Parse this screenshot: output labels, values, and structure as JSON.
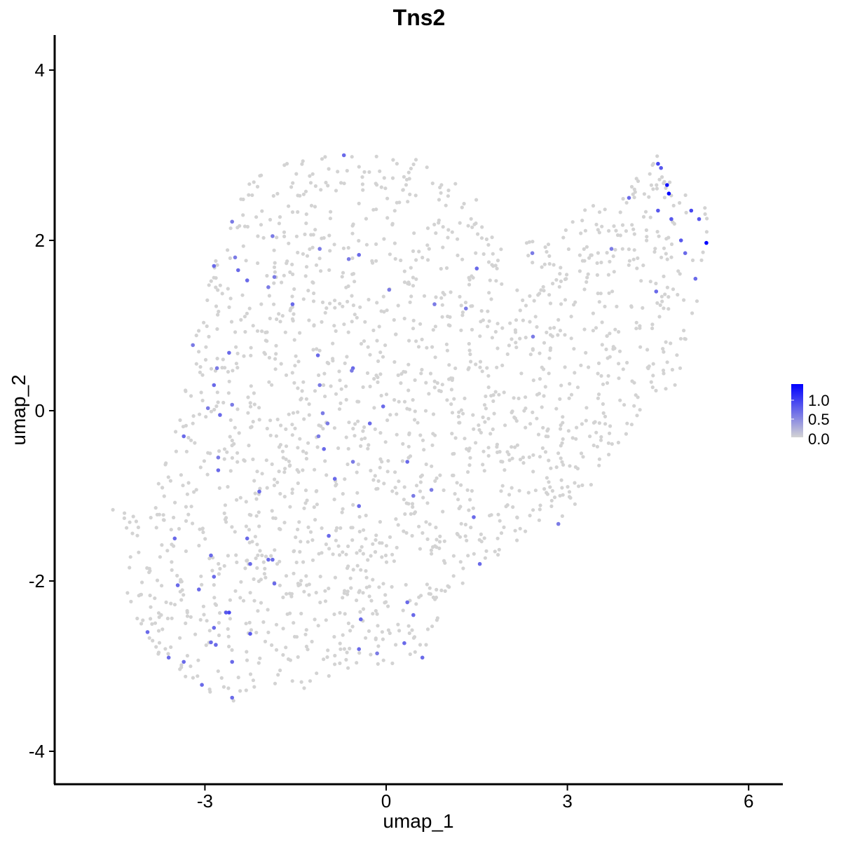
{
  "chart_data": {
    "type": "scatter",
    "title": "Tns2",
    "xlabel": "umap_1",
    "ylabel": "umap_2",
    "xlim": [
      -5.35,
      6.55
    ],
    "ylim": [
      -4.35,
      4.35
    ],
    "xticks": [
      -3,
      0,
      3,
      6
    ],
    "xtick_labels": [
      "-3",
      "0",
      "3",
      "6"
    ],
    "yticks": [
      -4,
      -2,
      0,
      2,
      4
    ],
    "ytick_labels": [
      "-4",
      "-2",
      "0",
      "2",
      "4"
    ],
    "grid": false,
    "legend": {
      "placement": "right",
      "labels": [
        "1.0",
        "0.5",
        "0.0"
      ],
      "color_low": "#d3d3d3",
      "color_high": "#0000ff",
      "range": [
        0,
        1.2
      ]
    },
    "low_color": "#d3d3d3",
    "high_color": "#0000ff",
    "expressing_points": [
      {
        "x": 4.65,
        "y": 2.65,
        "v": 1.1
      },
      {
        "x": 4.68,
        "y": 2.55,
        "v": 1.2
      },
      {
        "x": 5.3,
        "y": 1.97,
        "v": 1.2
      },
      {
        "x": 4.5,
        "y": 2.9,
        "v": 0.8
      },
      {
        "x": 4.55,
        "y": 2.85,
        "v": 0.7
      },
      {
        "x": 4.72,
        "y": 2.25,
        "v": 0.7
      },
      {
        "x": 4.88,
        "y": 2.0,
        "v": 0.7
      },
      {
        "x": 5.05,
        "y": 2.35,
        "v": 0.8
      },
      {
        "x": 5.18,
        "y": 2.25,
        "v": 0.7
      },
      {
        "x": 4.95,
        "y": 1.85,
        "v": 0.6
      },
      {
        "x": 4.5,
        "y": 2.35,
        "v": 0.7
      },
      {
        "x": 4.47,
        "y": 1.4,
        "v": 0.6
      },
      {
        "x": 5.12,
        "y": 1.55,
        "v": 0.6
      },
      {
        "x": 4.02,
        "y": 2.5,
        "v": 0.6
      },
      {
        "x": 3.73,
        "y": 1.9,
        "v": 0.5
      },
      {
        "x": 2.42,
        "y": 1.85,
        "v": 0.5
      },
      {
        "x": 2.43,
        "y": 0.87,
        "v": 0.5
      },
      {
        "x": 1.5,
        "y": 1.67,
        "v": 0.6
      },
      {
        "x": 1.32,
        "y": 1.2,
        "v": 0.5
      },
      {
        "x": 0.8,
        "y": 1.25,
        "v": 0.5
      },
      {
        "x": -0.45,
        "y": 1.83,
        "v": 0.6
      },
      {
        "x": -0.62,
        "y": 1.78,
        "v": 0.5
      },
      {
        "x": -0.7,
        "y": 3.0,
        "v": 0.6
      },
      {
        "x": -1.1,
        "y": 1.9,
        "v": 0.5
      },
      {
        "x": -1.85,
        "y": 1.57,
        "v": 0.5
      },
      {
        "x": -1.88,
        "y": 2.05,
        "v": 0.5
      },
      {
        "x": -2.55,
        "y": 2.22,
        "v": 0.5
      },
      {
        "x": -2.5,
        "y": 1.8,
        "v": 0.5
      },
      {
        "x": -2.45,
        "y": 1.65,
        "v": 0.6
      },
      {
        "x": -2.3,
        "y": 1.53,
        "v": 0.6
      },
      {
        "x": -2.85,
        "y": 1.7,
        "v": 0.6
      },
      {
        "x": -3.2,
        "y": 0.77,
        "v": 0.5
      },
      {
        "x": -1.55,
        "y": 1.25,
        "v": 0.6
      },
      {
        "x": -1.95,
        "y": 1.45,
        "v": 0.5
      },
      {
        "x": -2.6,
        "y": 0.68,
        "v": 0.6
      },
      {
        "x": -2.8,
        "y": 0.5,
        "v": 0.5
      },
      {
        "x": -2.85,
        "y": 0.3,
        "v": 0.6
      },
      {
        "x": -2.75,
        "y": -0.05,
        "v": 0.6
      },
      {
        "x": -2.95,
        "y": 0.03,
        "v": 0.5
      },
      {
        "x": -2.55,
        "y": 0.07,
        "v": 0.5
      },
      {
        "x": -3.35,
        "y": -0.3,
        "v": 0.6
      },
      {
        "x": -2.78,
        "y": -0.7,
        "v": 0.6
      },
      {
        "x": -2.78,
        "y": -0.55,
        "v": 0.5
      },
      {
        "x": -1.13,
        "y": 0.65,
        "v": 0.6
      },
      {
        "x": -1.1,
        "y": 0.3,
        "v": 0.5
      },
      {
        "x": -1.05,
        "y": -0.03,
        "v": 0.5
      },
      {
        "x": -0.97,
        "y": -0.15,
        "v": 0.5
      },
      {
        "x": -1.12,
        "y": -0.3,
        "v": 0.5
      },
      {
        "x": -1.03,
        "y": -0.45,
        "v": 0.6
      },
      {
        "x": -0.55,
        "y": 0.5,
        "v": 0.6
      },
      {
        "x": -0.57,
        "y": 0.47,
        "v": 0.5
      },
      {
        "x": -0.05,
        "y": 0.05,
        "v": 0.6
      },
      {
        "x": -0.27,
        "y": -0.15,
        "v": 0.6
      },
      {
        "x": -0.55,
        "y": -0.6,
        "v": 0.5
      },
      {
        "x": -0.85,
        "y": -0.8,
        "v": 0.6
      },
      {
        "x": -0.45,
        "y": -1.12,
        "v": 0.6
      },
      {
        "x": 0.35,
        "y": -0.6,
        "v": 0.6
      },
      {
        "x": 0.45,
        "y": -1.0,
        "v": 0.5
      },
      {
        "x": 0.75,
        "y": -0.93,
        "v": 0.5
      },
      {
        "x": 0.05,
        "y": 1.42,
        "v": 0.5
      },
      {
        "x": -2.1,
        "y": -0.95,
        "v": 0.6
      },
      {
        "x": -3.5,
        "y": -1.5,
        "v": 0.6
      },
      {
        "x": -2.3,
        "y": -1.5,
        "v": 0.6
      },
      {
        "x": -2.25,
        "y": -1.8,
        "v": 0.6
      },
      {
        "x": -1.95,
        "y": -1.75,
        "v": 0.6
      },
      {
        "x": -1.88,
        "y": -1.75,
        "v": 0.6
      },
      {
        "x": -1.85,
        "y": -2.03,
        "v": 0.6
      },
      {
        "x": -2.9,
        "y": -1.7,
        "v": 0.6
      },
      {
        "x": -2.85,
        "y": -1.95,
        "v": 0.6
      },
      {
        "x": -3.45,
        "y": -2.05,
        "v": 0.6
      },
      {
        "x": -3.1,
        "y": -2.1,
        "v": 0.6
      },
      {
        "x": -2.6,
        "y": -2.37,
        "v": 0.8
      },
      {
        "x": -2.65,
        "y": -2.37,
        "v": 0.7
      },
      {
        "x": -2.85,
        "y": -2.55,
        "v": 0.6
      },
      {
        "x": -2.25,
        "y": -2.62,
        "v": 0.7
      },
      {
        "x": -2.9,
        "y": -2.72,
        "v": 0.6
      },
      {
        "x": -2.82,
        "y": -2.75,
        "v": 0.6
      },
      {
        "x": -2.55,
        "y": -2.95,
        "v": 0.6
      },
      {
        "x": -3.6,
        "y": -2.9,
        "v": 0.6
      },
      {
        "x": -3.35,
        "y": -2.95,
        "v": 0.6
      },
      {
        "x": -3.95,
        "y": -2.6,
        "v": 0.6
      },
      {
        "x": -3.05,
        "y": -3.22,
        "v": 0.6
      },
      {
        "x": -2.55,
        "y": -3.37,
        "v": 0.6
      },
      {
        "x": -0.95,
        "y": -1.47,
        "v": 0.6
      },
      {
        "x": 0.35,
        "y": -2.25,
        "v": 0.6
      },
      {
        "x": 0.45,
        "y": -2.4,
        "v": 0.6
      },
      {
        "x": -0.42,
        "y": -2.45,
        "v": 0.6
      },
      {
        "x": -0.45,
        "y": -2.8,
        "v": 0.6
      },
      {
        "x": -0.15,
        "y": -2.85,
        "v": 0.5
      },
      {
        "x": 0.3,
        "y": -2.73,
        "v": 0.6
      },
      {
        "x": 0.6,
        "y": -2.9,
        "v": 0.6
      },
      {
        "x": 1.45,
        "y": -1.25,
        "v": 0.6
      },
      {
        "x": 1.55,
        "y": -1.8,
        "v": 0.6
      },
      {
        "x": 2.85,
        "y": -1.33,
        "v": 0.5
      }
    ]
  }
}
